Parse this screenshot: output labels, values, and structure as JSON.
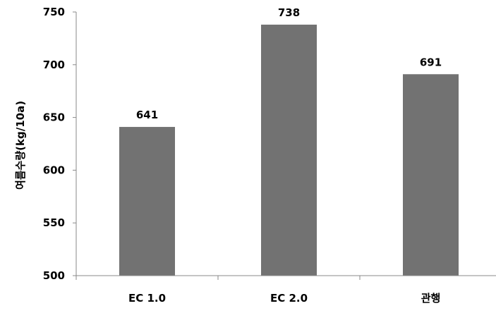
{
  "chart_data": {
    "type": "bar",
    "categories": [
      "EC 1.0",
      "EC 2.0",
      "관행"
    ],
    "values": [
      641,
      738,
      691
    ],
    "data_labels": [
      "641",
      "738",
      "691"
    ],
    "title": "",
    "xlabel": "",
    "ylabel": "여름수량(kg/10a)",
    "ylim": [
      500,
      750
    ],
    "yticks": [
      500,
      550,
      600,
      650,
      700,
      750
    ],
    "grid": false,
    "legend": "none",
    "bar_color": "#727272"
  }
}
